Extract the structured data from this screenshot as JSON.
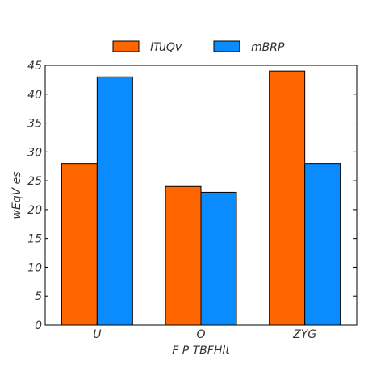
{
  "chart_data": {
    "type": "bar",
    "title": "",
    "xlabel": "F P TBFHlt",
    "ylabel": "wEqV es",
    "categories": [
      "U",
      "O",
      "ZYG"
    ],
    "series": [
      {
        "name": "lTuQv",
        "values": [
          28,
          24,
          44
        ],
        "color": "#ff6600"
      },
      {
        "name": "mBRP",
        "values": [
          43,
          23,
          28
        ],
        "color": "#0a8cff"
      }
    ],
    "ylim": [
      0,
      45
    ],
    "yticks": [
      0,
      5,
      10,
      15,
      20,
      25,
      30,
      35,
      40,
      45
    ],
    "grid": false,
    "legend_position": "top-center"
  }
}
